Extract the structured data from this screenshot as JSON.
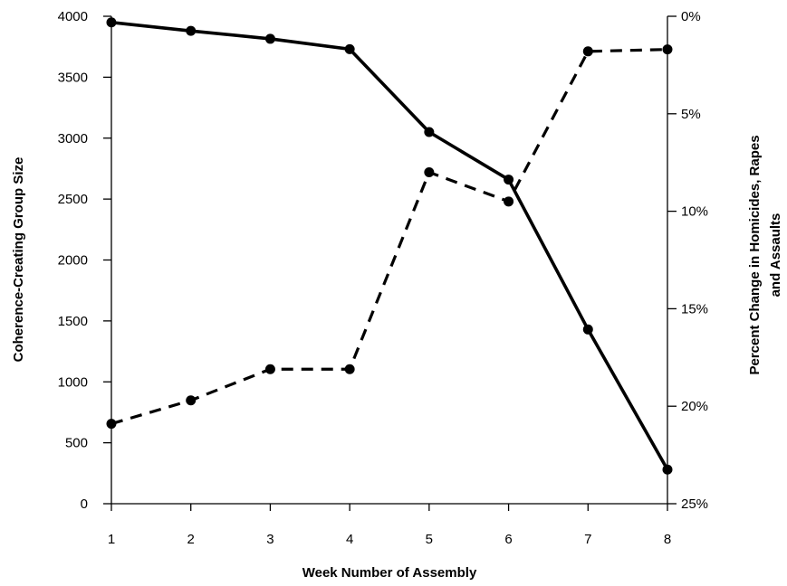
{
  "chart_data": {
    "type": "line",
    "xlabel": "Week Number of Assembly",
    "ylabel": "Coherence-Creating Group Size",
    "y2label_line1": "Percent Change in Homicides, Rapes",
    "y2label_line2": "and Assaults",
    "x": [
      1,
      2,
      3,
      4,
      5,
      6,
      7,
      8
    ],
    "x_ticks": [
      "1",
      "2",
      "3",
      "4",
      "5",
      "6",
      "7",
      "8"
    ],
    "xlim": [
      1,
      8
    ],
    "ylim": [
      0,
      4000
    ],
    "y_ticks": [
      0,
      500,
      1000,
      1500,
      2000,
      2500,
      3000,
      3500,
      4000
    ],
    "y2lim": [
      0,
      25
    ],
    "y2_inverted": true,
    "y2_ticks": [
      "0%",
      "5%",
      "10%",
      "15%",
      "20%",
      "25%"
    ],
    "y2_tick_values": [
      0,
      5,
      10,
      15,
      20,
      25
    ],
    "series": [
      {
        "axis": "left",
        "line_style": "solid",
        "values": [
          3950,
          3880,
          3815,
          3730,
          3050,
          2660,
          1430,
          280
        ]
      },
      {
        "axis": "right",
        "line_style": "dashed",
        "values": [
          20.9,
          19.7,
          18.1,
          18.1,
          8.0,
          9.5,
          1.8,
          1.7
        ]
      }
    ],
    "grid": false,
    "colors": {
      "line": "#000000",
      "background": "#ffffff"
    }
  }
}
